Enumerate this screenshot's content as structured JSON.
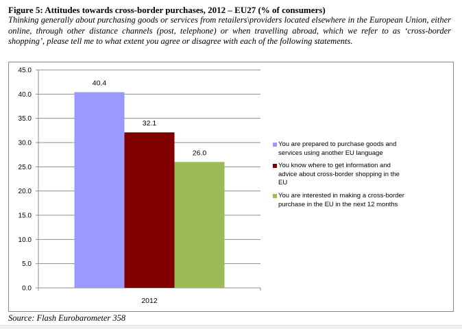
{
  "header": {
    "title": "Figure 5: Attitudes towards cross-border purchases, 2012 – EU27 (% of consumers)",
    "subtitle": "Thinking generally about purchasing goods or services from retailers\\providers located elsewhere in the European Union, either online, through other distance channels (post, telephone) or when travelling abroad, which we refer to as ‘cross-border shopping’, please tell me to what extent you agree or disagree with each of the following statements."
  },
  "footer": {
    "source": "Source: Flash Eurobarometer 358"
  },
  "chart_data": {
    "type": "bar",
    "categories": [
      "2012"
    ],
    "series": [
      {
        "name": "You are prepared to purchase goods and services using another EU language",
        "values": [
          40.4
        ],
        "color": "#9999ff"
      },
      {
        "name": "You know where to get information and advice about cross-border shopping in the EU",
        "values": [
          32.1
        ],
        "color": "#800000"
      },
      {
        "name": "You are interested in making a cross-border purchase in the EU in the next 12 months",
        "values": [
          26.0
        ],
        "color": "#9bbb59"
      }
    ],
    "ylim": [
      0,
      45
    ],
    "yticks": [
      "0.0",
      "5.0",
      "10.0",
      "15.0",
      "20.0",
      "25.0",
      "30.0",
      "35.0",
      "40.0",
      "45.0"
    ],
    "data_labels": [
      "40.4",
      "32.1",
      "26.0"
    ],
    "grid": true,
    "legend": "right"
  }
}
